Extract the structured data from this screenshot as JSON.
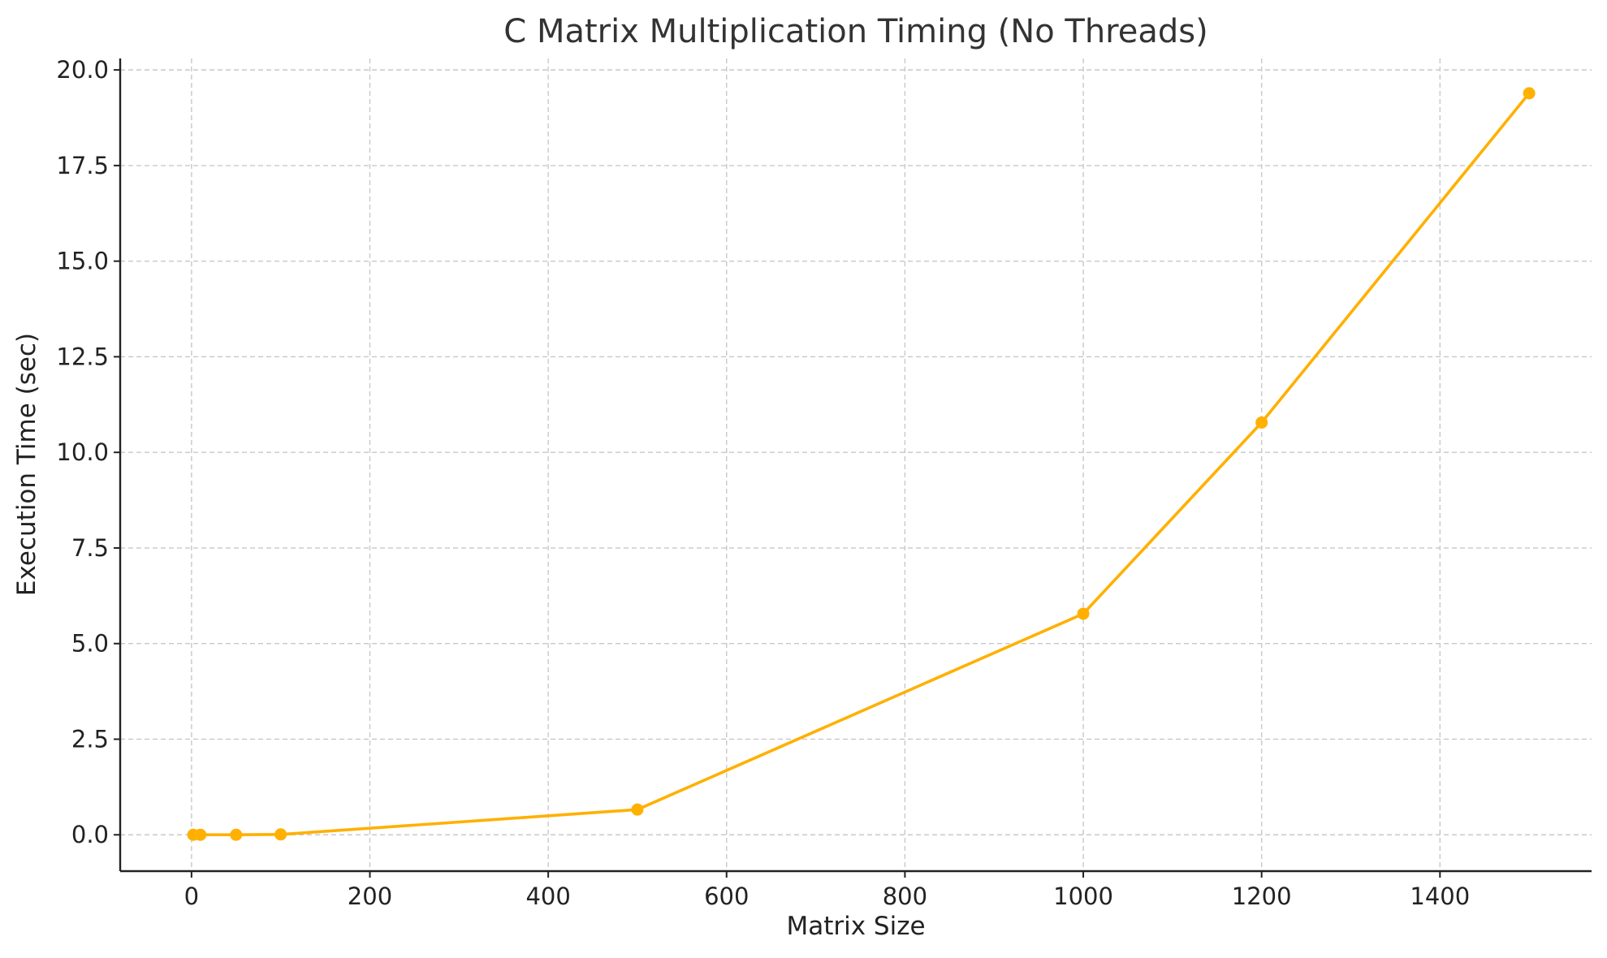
{
  "chart_data": {
    "type": "line",
    "title": "C Matrix Multiplication Timing (No Threads)",
    "xlabel": "Matrix Size",
    "ylabel": "Execution Time (sec)",
    "xlim": [
      -80,
      1570
    ],
    "ylim": [
      -0.95,
      20.3
    ],
    "x_ticks": [
      0,
      200,
      400,
      600,
      800,
      1000,
      1200,
      1400
    ],
    "x_tick_labels": [
      "0",
      "200",
      "400",
      "600",
      "800",
      "1000",
      "1200",
      "1400"
    ],
    "y_ticks": [
      0.0,
      2.5,
      5.0,
      7.5,
      10.0,
      12.5,
      15.0,
      17.5,
      20.0
    ],
    "y_tick_labels": [
      "0.0",
      "2.5",
      "5.0",
      "7.5",
      "10.0",
      "12.5",
      "15.0",
      "17.5",
      "20.0"
    ],
    "grid": true,
    "series": [
      {
        "color": "#FFB000",
        "marker": "circle",
        "x": [
          2,
          10,
          50,
          100,
          500,
          1000,
          1200,
          1500
        ],
        "y": [
          0.0,
          0.0,
          0.0,
          0.01,
          0.66,
          5.78,
          10.78,
          19.39
        ]
      }
    ]
  }
}
